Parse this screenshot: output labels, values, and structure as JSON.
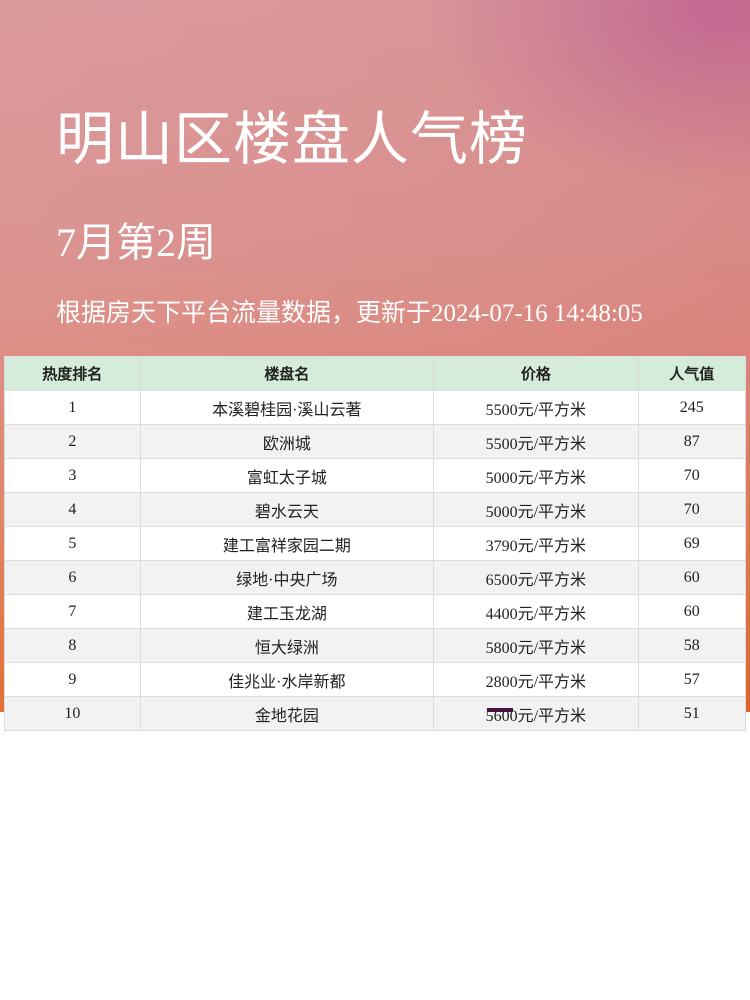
{
  "title": "明山区楼盘人气榜",
  "week": "7月第2周",
  "update_text": "根据房天下平台流量数据，更新于2024-07-16 14:48:05",
  "table": {
    "headers": [
      "热度排名",
      "楼盘名",
      "价格",
      "人气值"
    ],
    "rows": [
      [
        "1",
        "本溪碧桂园·溪山云著",
        "5500元/平方米",
        "245"
      ],
      [
        "2",
        "欧洲城",
        "5500元/平方米",
        "87"
      ],
      [
        "3",
        "富虹太子城",
        "5000元/平方米",
        "70"
      ],
      [
        "4",
        "碧水云天",
        "5000元/平方米",
        "70"
      ],
      [
        "5",
        "建工富祥家园二期",
        "3790元/平方米",
        "69"
      ],
      [
        "6",
        "绿地·中央广场",
        "6500元/平方米",
        "60"
      ],
      [
        "7",
        "建工玉龙湖",
        "4400元/平方米",
        "60"
      ],
      [
        "8",
        "恒大绿洲",
        "5800元/平方米",
        "58"
      ],
      [
        "9",
        "佳兆业·水岸新都",
        "2800元/平方米",
        "57"
      ],
      [
        "10",
        "金地花园",
        "5600元/平方米",
        "51"
      ]
    ]
  },
  "colors": {
    "header_bg": "#d4ecd9",
    "stripe": "#f2f2f2"
  }
}
